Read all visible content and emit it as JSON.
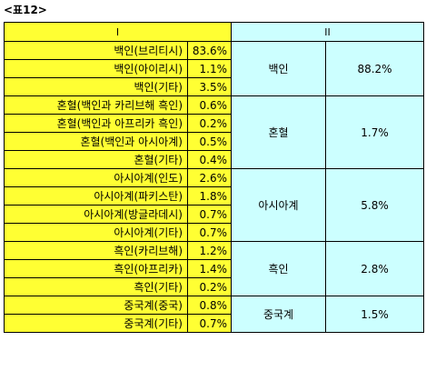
{
  "caption": "<표12>",
  "headers": {
    "col1": "I",
    "col2": "II"
  },
  "groups": [
    {
      "name": "백인",
      "total": "88.2%",
      "rows": [
        {
          "label": "백인(브리티시)",
          "value": "83.6%"
        },
        {
          "label": "백인(아이리시)",
          "value": "1.1%"
        },
        {
          "label": "백인(기타)",
          "value": "3.5%"
        }
      ]
    },
    {
      "name": "혼혈",
      "total": "1.7%",
      "rows": [
        {
          "label": "혼혈(백인과 카리브해 흑인)",
          "value": "0.6%"
        },
        {
          "label": "혼혈(백인과 아프리카 흑인)",
          "value": "0.2%"
        },
        {
          "label": "혼혈(백인과 아시아계)",
          "value": "0.5%"
        },
        {
          "label": "혼혈(기타)",
          "value": "0.4%"
        }
      ]
    },
    {
      "name": "아시아계",
      "total": "5.8%",
      "rows": [
        {
          "label": "아시아계(인도)",
          "value": "2.6%"
        },
        {
          "label": "아시아계(파키스탄)",
          "value": "1.8%"
        },
        {
          "label": "아시아계(방글라데시)",
          "value": "0.7%"
        },
        {
          "label": "아시아계(기타)",
          "value": "0.7%"
        }
      ]
    },
    {
      "name": "흑인",
      "total": "2.8%",
      "rows": [
        {
          "label": "흑인(카리브해)",
          "value": "1.2%"
        },
        {
          "label": "흑인(아프리카)",
          "value": "1.4%"
        },
        {
          "label": "흑인(기타)",
          "value": "0.2%"
        }
      ]
    },
    {
      "name": "중국계",
      "total": "1.5%",
      "rows": [
        {
          "label": "중국계(중국)",
          "value": "0.8%"
        },
        {
          "label": "중국계(기타)",
          "value": "0.7%"
        }
      ]
    }
  ],
  "colors": {
    "yellow": "#ffff33",
    "cyan": "#ccffff"
  }
}
